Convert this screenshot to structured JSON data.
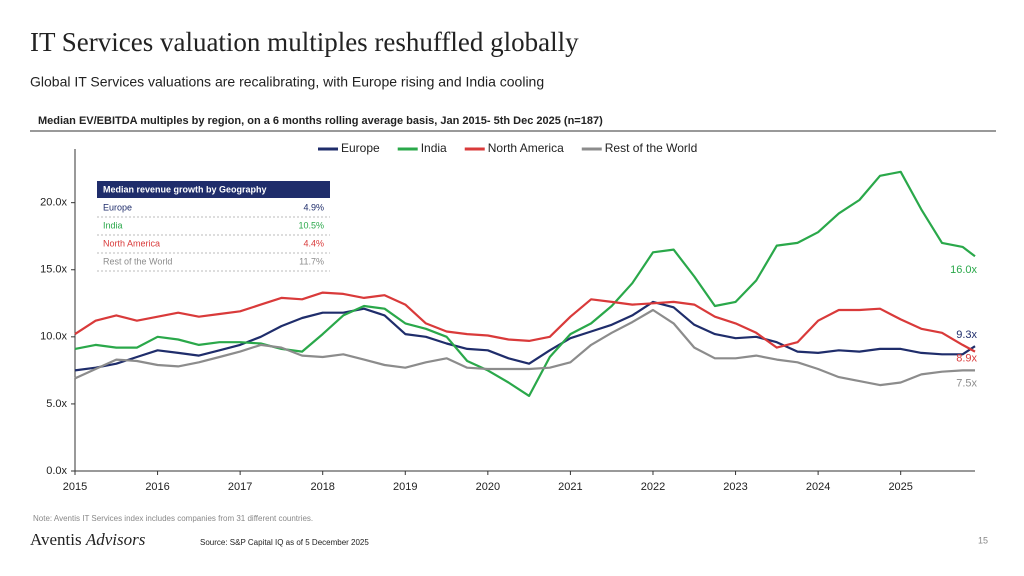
{
  "page": {
    "title": "IT Services valuation multiples reshuffled globally",
    "subtitle": "Global IT Services valuations are recalibrating, with Europe rising and India cooling",
    "note": "Note: Aventis IT Services index includes companies from 31 different countries.",
    "logo": {
      "name": "Aventis",
      "suffix": "Advisors"
    },
    "source": "Source: S&P Capital IQ as of 5 December 2025",
    "page_number": "15"
  },
  "chart_data": {
    "type": "line",
    "title": "Median EV/EBITDA multiples by region, on a 6 months rolling average basis, Jan 2015- 5th Dec 2025 (n=187)",
    "x": [
      2015,
      2015.25,
      2015.5,
      2015.75,
      2016,
      2016.25,
      2016.5,
      2016.75,
      2017,
      2017.25,
      2017.5,
      2017.75,
      2018,
      2018.25,
      2018.5,
      2018.75,
      2019,
      2019.25,
      2019.5,
      2019.75,
      2020,
      2020.25,
      2020.5,
      2020.75,
      2021,
      2021.25,
      2021.5,
      2021.75,
      2022,
      2022.25,
      2022.5,
      2022.75,
      2023,
      2023.25,
      2023.5,
      2023.75,
      2024,
      2024.25,
      2024.5,
      2024.75,
      2025,
      2025.25,
      2025.5,
      2025.75,
      2025.9
    ],
    "xlim": [
      2015,
      2025.9
    ],
    "xticks": [
      2015,
      2016,
      2017,
      2018,
      2019,
      2020,
      2021,
      2022,
      2023,
      2024,
      2025
    ],
    "ylim": [
      0,
      24
    ],
    "yticks": [
      {
        "value": 0,
        "label": "0.0x"
      },
      {
        "value": 5,
        "label": "5.0x"
      },
      {
        "value": 10,
        "label": "10.0x"
      },
      {
        "value": 15,
        "label": "15.0x"
      },
      {
        "value": 20,
        "label": "20.0x"
      }
    ],
    "series": [
      {
        "name": "Europe",
        "color": "#1f2d6b",
        "end_label": "9.3x",
        "values": [
          7.5,
          7.7,
          8.0,
          8.5,
          9.0,
          8.8,
          8.6,
          9.0,
          9.4,
          10.0,
          10.8,
          11.4,
          11.8,
          11.8,
          12.1,
          11.6,
          10.2,
          10.0,
          9.5,
          9.1,
          9.0,
          8.4,
          8.0,
          9.0,
          9.9,
          10.4,
          10.9,
          11.6,
          12.6,
          12.2,
          10.9,
          10.2,
          9.9,
          10.0,
          9.6,
          8.9,
          8.8,
          9.0,
          8.9,
          9.1,
          9.1,
          8.8,
          8.7,
          8.7,
          9.3
        ]
      },
      {
        "name": "India",
        "color": "#2aa84a",
        "end_label": "16.0x",
        "values": [
          9.1,
          9.4,
          9.2,
          9.2,
          10.0,
          9.8,
          9.4,
          9.6,
          9.6,
          9.5,
          9.1,
          8.9,
          10.2,
          11.6,
          12.3,
          12.1,
          11.0,
          10.6,
          10.0,
          8.2,
          7.5,
          6.6,
          5.6,
          8.5,
          10.2,
          11.0,
          12.3,
          14.0,
          16.3,
          16.5,
          14.5,
          12.3,
          12.6,
          14.2,
          16.8,
          17.0,
          17.8,
          19.2,
          20.2,
          22.0,
          22.3,
          19.5,
          17.0,
          16.7,
          16.0
        ]
      },
      {
        "name": "North America",
        "color": "#d93a3a",
        "end_label": "8.9x",
        "values": [
          10.2,
          11.2,
          11.6,
          11.2,
          11.5,
          11.8,
          11.5,
          11.7,
          11.9,
          12.4,
          12.9,
          12.8,
          13.3,
          13.2,
          12.9,
          13.1,
          12.4,
          11.0,
          10.4,
          10.2,
          10.1,
          9.8,
          9.7,
          10.0,
          11.5,
          12.8,
          12.6,
          12.4,
          12.5,
          12.6,
          12.4,
          11.5,
          11.0,
          10.3,
          9.2,
          9.6,
          11.2,
          12.0,
          12.0,
          12.1,
          11.3,
          10.6,
          10.3,
          9.4,
          8.9
        ]
      },
      {
        "name": "Rest of the World",
        "color": "#8c8c8c",
        "end_label": "7.5x",
        "values": [
          6.9,
          7.6,
          8.3,
          8.2,
          7.9,
          7.8,
          8.1,
          8.5,
          8.9,
          9.4,
          9.2,
          8.6,
          8.5,
          8.7,
          8.3,
          7.9,
          7.7,
          8.1,
          8.4,
          7.7,
          7.6,
          7.6,
          7.6,
          7.7,
          8.1,
          9.4,
          10.3,
          11.1,
          12.0,
          11.0,
          9.2,
          8.4,
          8.4,
          8.6,
          8.3,
          8.1,
          7.6,
          7.0,
          6.7,
          6.4,
          6.6,
          7.2,
          7.4,
          7.5,
          7.5
        ]
      }
    ],
    "inset": {
      "title": "Median revenue growth by Geography",
      "rows": [
        {
          "label": "Europe",
          "value": 4.9,
          "value_label": "4.9%"
        },
        {
          "label": "India",
          "value": 10.5,
          "value_label": "10.5%"
        },
        {
          "label": "North America",
          "value": 4.4,
          "value_label": "4.4%"
        },
        {
          "label": "Rest of the World",
          "value": 11.7,
          "value_label": "11.7%"
        }
      ]
    }
  }
}
